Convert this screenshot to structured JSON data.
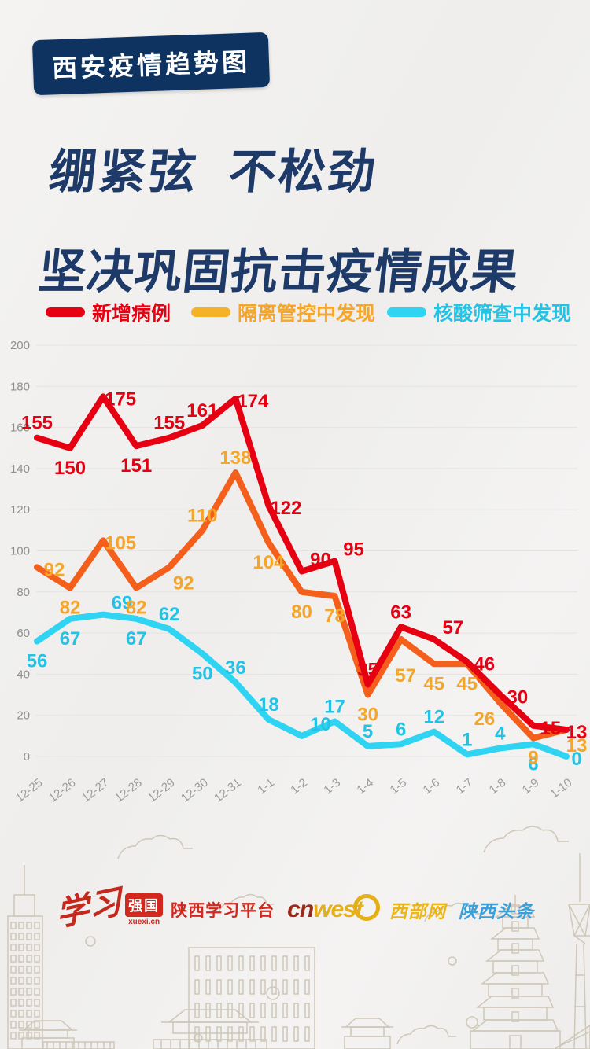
{
  "badge": {
    "label": "西安疫情趋势图"
  },
  "title": {
    "line1": "绷紧弦  不松劲",
    "line2": "坚决巩固抗击疫情成果"
  },
  "chart_data": {
    "type": "line",
    "title": "西安疫情趋势图",
    "categories": [
      "12-25",
      "12-26",
      "12-27",
      "12-28",
      "12-29",
      "12-30",
      "12-31",
      "1-1",
      "1-2",
      "1-3",
      "1-4",
      "1-5",
      "1-6",
      "1-7",
      "1-8",
      "1-9",
      "1-10"
    ],
    "series": [
      {
        "name": "新增病例",
        "line_color": "#e60012",
        "label_color": "#e60012",
        "swatch_color": "#e60012",
        "values": [
          155,
          150,
          175,
          151,
          155,
          161,
          174,
          122,
          90,
          95,
          35,
          63,
          57,
          46,
          30,
          15,
          13
        ]
      },
      {
        "name": "隔离管控中发现",
        "line_color": "#f4601c",
        "label_color": "#f5a62a",
        "swatch_color": "#f5b226",
        "values": [
          92,
          82,
          105,
          82,
          92,
          110,
          138,
          104,
          80,
          78,
          30,
          57,
          45,
          45,
          26,
          9,
          13
        ]
      },
      {
        "name": "核酸筛查中发现",
        "line_color": "#2fd4f2",
        "label_color": "#23c3e6",
        "swatch_color": "#2fd4f2",
        "values": [
          56,
          67,
          69,
          67,
          62,
          50,
          36,
          18,
          10,
          17,
          5,
          6,
          12,
          1,
          4,
          6,
          0
        ]
      }
    ],
    "ylim": [
      0,
      200
    ],
    "yticks": [
      0,
      20,
      40,
      60,
      80,
      100,
      120,
      140,
      160,
      180,
      200
    ],
    "grid": true,
    "legend_position": "top",
    "xlabel": "",
    "ylabel": ""
  },
  "colors": {
    "background": "#f2f1ef",
    "title_navy": "#1d3a68",
    "badge_bg": "#0e3361",
    "gridline": "#e4e3e1",
    "axis_text": "#8f8f8f",
    "skyline_line": "#cfc7b8"
  },
  "footer": {
    "xuexi_script": "学习",
    "qiangguo": "强国",
    "xuexi_url": "xuexi.cn",
    "platform": "陕西学习平台",
    "cnwest_cn": "cn",
    "cnwest_west": "west",
    "xibuwang": "西部网",
    "toutiao": "陕西头条"
  }
}
